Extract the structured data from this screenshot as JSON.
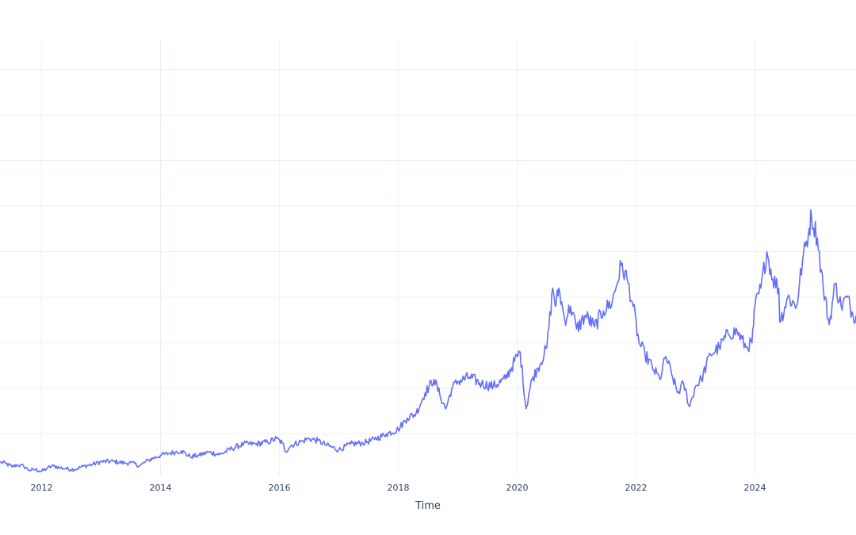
{
  "chart_data": {
    "type": "line",
    "xlabel": "Time",
    "ylabel": "",
    "xlim": [
      2011.3,
      2025.7
    ],
    "ylim": [
      0,
      100
    ],
    "x_ticks": [
      2012,
      2014,
      2016,
      2018,
      2020,
      2022,
      2024
    ],
    "x_tick_labels": [
      "2012",
      "2014",
      "2016",
      "2018",
      "2020",
      "2022",
      "2024"
    ],
    "y_gridlines": [
      10,
      20,
      30,
      40,
      50,
      60,
      70,
      80,
      90
    ],
    "grid": true,
    "legend": "none",
    "colors": {
      "line": "#636efa",
      "grid": "#ebf0f8",
      "text": "#2a3f5f",
      "background": "#ffffff"
    },
    "series": [
      {
        "x": [
          2011.3,
          2011.4,
          2011.5,
          2011.6,
          2011.7,
          2011.8,
          2011.9,
          2011.95,
          2012.0,
          2012.1,
          2012.2,
          2012.3,
          2012.4,
          2012.55,
          2012.7,
          2012.85,
          2013.0,
          2013.2,
          2013.4,
          2013.5,
          2013.65,
          2013.8,
          2014.0,
          2014.15,
          2014.25,
          2014.35,
          2014.5,
          2014.65,
          2014.8,
          2015.0,
          2015.2,
          2015.4,
          2015.6,
          2015.8,
          2015.95,
          2016.05,
          2016.1,
          2016.2,
          2016.4,
          2016.5,
          2016.65,
          2016.8,
          2017.0,
          2017.2,
          2017.4,
          2017.6,
          2017.8,
          2018.0,
          2018.15,
          2018.3,
          2018.45,
          2018.6,
          2018.7,
          2018.8,
          2018.9,
          2019.0,
          2019.2,
          2019.4,
          2019.6,
          2019.8,
          2020.0,
          2020.05,
          2020.15,
          2020.2,
          2020.25,
          2020.35,
          2020.5,
          2020.6,
          2020.65,
          2020.7,
          2020.8,
          2020.9,
          2021.0,
          2021.15,
          2021.3,
          2021.45,
          2021.6,
          2021.75,
          2021.85,
          2021.95,
          2022.05,
          2022.15,
          2022.3,
          2022.4,
          2022.5,
          2022.6,
          2022.7,
          2022.8,
          2022.9,
          2023.0,
          2023.1,
          2023.25,
          2023.4,
          2023.55,
          2023.7,
          2023.85,
          2023.95,
          2024.0,
          2024.1,
          2024.2,
          2024.3,
          2024.4,
          2024.42,
          2024.55,
          2024.7,
          2024.8,
          2024.9,
          2024.95,
          2025.05,
          2025.15,
          2025.25,
          2025.35,
          2025.45,
          2025.55,
          2025.65,
          2025.7
        ],
        "y": [
          3.8,
          3.5,
          2.8,
          3.2,
          2.9,
          2.0,
          2.2,
          1.9,
          1.8,
          2.5,
          3.0,
          2.6,
          2.4,
          2.2,
          2.9,
          3.3,
          3.9,
          4.0,
          3.6,
          3.7,
          3.0,
          4.3,
          5.3,
          5.8,
          6.0,
          6.3,
          5.0,
          5.3,
          6.0,
          5.5,
          6.8,
          7.8,
          7.8,
          8.2,
          9.0,
          8.0,
          6.2,
          7.5,
          8.5,
          9.0,
          8.5,
          7.5,
          6.5,
          7.8,
          8.0,
          8.8,
          10.0,
          11.0,
          13.5,
          14.5,
          19.0,
          22.0,
          18.5,
          15.5,
          20.0,
          21.5,
          22.5,
          21.0,
          20.5,
          22.0,
          27.0,
          28.0,
          15.5,
          19.0,
          22.0,
          24.5,
          29.0,
          42.0,
          38.0,
          42.0,
          35.0,
          38.0,
          33.0,
          36.0,
          33.5,
          37.0,
          39.0,
          47.0,
          44.0,
          38.0,
          30.0,
          27.5,
          24.0,
          22.0,
          27.0,
          23.0,
          19.0,
          21.0,
          16.0,
          20.5,
          22.0,
          27.5,
          29.0,
          32.0,
          32.5,
          29.0,
          30.0,
          38.0,
          42.0,
          50.0,
          44.0,
          42.0,
          34.5,
          40.0,
          38.0,
          48.0,
          54.0,
          58.0,
          53.0,
          42.0,
          34.0,
          43.0,
          38.0,
          40.0,
          36.0,
          36.0
        ]
      }
    ]
  }
}
